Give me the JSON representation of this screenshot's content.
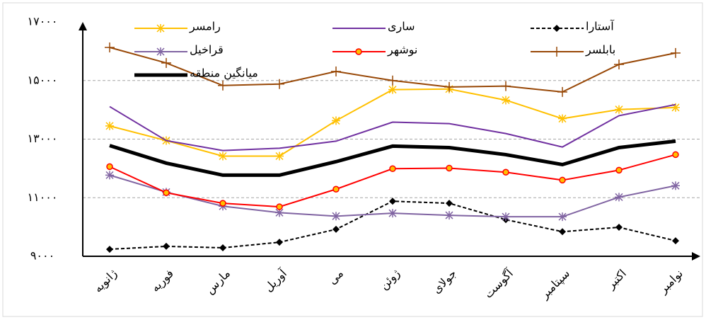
{
  "chart_data": {
    "type": "line",
    "categories": [
      "ژانویه",
      "فوریه",
      "مارس",
      "آوریل",
      "می",
      "ژوئن",
      "جولای",
      "آگوست",
      "سپتامبر",
      "اکتبر",
      "نوامبر"
    ],
    "ylim": [
      9000,
      17000
    ],
    "yticks": [
      {
        "value": 9000,
        "label": "۹۰۰۰"
      },
      {
        "value": 11000,
        "label": "۱۱۰۰۰"
      },
      {
        "value": 13000,
        "label": "۱۳۰۰۰"
      },
      {
        "value": 15000,
        "label": "۱۵۰۰۰"
      },
      {
        "value": 17000,
        "label": "۱۷۰۰۰"
      }
    ],
    "grid": true,
    "series": [
      {
        "name": "رامسر",
        "color": "#ffc000",
        "marker": "star",
        "values": [
          13450,
          12950,
          12420,
          12420,
          13630,
          14690,
          14710,
          14330,
          13700,
          14010,
          14080
        ]
      },
      {
        "name": "ساری",
        "color": "#7030a0",
        "marker": "line",
        "values": [
          14110,
          12950,
          12610,
          12690,
          12930,
          13580,
          13530,
          13190,
          12730,
          13800,
          14180
        ]
      },
      {
        "name": "آستارا",
        "color": "#000000",
        "marker": "diamond",
        "dashed": true,
        "values": [
          9240,
          9340,
          9290,
          9480,
          9920,
          10880,
          10810,
          10250,
          9840,
          9990,
          9530
        ]
      },
      {
        "name": "قراخیل",
        "color": "#8064a2",
        "marker": "star",
        "values": [
          11770,
          11190,
          10710,
          10490,
          10370,
          10470,
          10400,
          10350,
          10350,
          11020,
          11410
        ]
      },
      {
        "name": "نوشهر",
        "color": "#ff0000",
        "marker": "circle",
        "values": [
          12060,
          11170,
          10810,
          10690,
          11290,
          11990,
          12010,
          11870,
          11600,
          11940,
          12470
        ]
      },
      {
        "name": "بابلسر",
        "color": "#984807",
        "marker": "plus",
        "values": [
          16130,
          15600,
          14830,
          14880,
          15310,
          15000,
          14780,
          14810,
          14610,
          15550,
          15940
        ]
      },
      {
        "name": "میانگین منطقه",
        "color": "#000000",
        "marker": "none",
        "values": [
          12780,
          12180,
          11770,
          11770,
          12230,
          12760,
          12710,
          12470,
          12130,
          12710,
          12930
        ]
      }
    ]
  }
}
